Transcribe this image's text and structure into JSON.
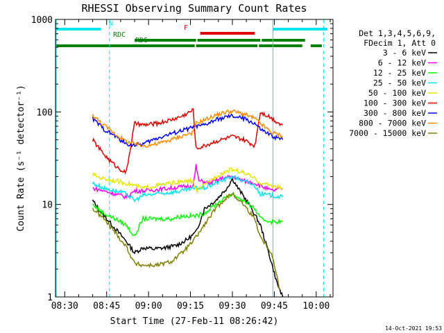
{
  "chart_data": {
    "type": "line",
    "title": "RHESSI Observing Summary Count Rates",
    "xlabel": "Start Time (27-Feb-11 08:26:42)",
    "ylabel": "Count Rate (s⁻¹ detector⁻¹)",
    "yscale": "log",
    "ylim": [
      1,
      1000
    ],
    "xlim": [
      "08:26:42",
      "10:06:00"
    ],
    "x_ticks": [
      "08:30",
      "08:45",
      "09:00",
      "09:15",
      "09:30",
      "09:45",
      "10:00"
    ],
    "y_ticks": [
      "1",
      "10",
      "100",
      "1000"
    ],
    "legend_header": [
      "Det 1,3,4,5,6,9,",
      "FDecim 1, Att 0"
    ],
    "legend_position": "right",
    "timestamp": "14-Oct-2021 19:53",
    "flags": [
      {
        "label": "N",
        "color": "#00e5ee",
        "segments": [
          [
            "08:26:42",
            "08:43:00"
          ],
          [
            "09:44:30",
            "10:04:00"
          ]
        ]
      },
      {
        "label": "F",
        "color": "#e00000",
        "segments": [
          [
            "09:18:30",
            "09:38:00"
          ]
        ]
      },
      {
        "label": "RDC",
        "color": "#008000",
        "segments": [
          [
            "08:55:00",
            "09:17:00"
          ],
          [
            "09:17:30",
            "09:40:00"
          ],
          [
            "09:40:30",
            "09:56:00"
          ]
        ]
      },
      {
        "label": "RD6",
        "color": "#008000",
        "segments": [
          [
            "08:26:42",
            "08:55:00"
          ],
          [
            "08:55:00",
            "09:16:30"
          ],
          [
            "09:17:00",
            "09:39:00"
          ],
          [
            "09:39:30",
            "09:55:00"
          ],
          [
            "09:58:00",
            "10:02:00"
          ]
        ]
      }
    ],
    "vlines": [
      {
        "time": "08:26:42",
        "color": "#00e5ee",
        "style": "solid"
      },
      {
        "time": "09:44:30",
        "color": "#00e5ee",
        "style": "solid"
      },
      {
        "time": "08:46:00",
        "color": "#00e5ee",
        "style": "dashed"
      },
      {
        "time": "10:02:40",
        "color": "#00e5ee",
        "style": "dashed"
      }
    ],
    "series": [
      {
        "name": "3 - 6 keV",
        "color": "#000000",
        "x": [
          "08:40:00",
          "08:42:00",
          "08:45:00",
          "08:48:00",
          "08:52:00",
          "08:55:00",
          "08:58:00",
          "09:02:00",
          "09:06:00",
          "09:10:00",
          "09:14:00",
          "09:17:00",
          "09:20:00",
          "09:24:00",
          "09:28:00",
          "09:30:00",
          "09:32:00",
          "09:36:00",
          "09:40:00",
          "09:43:00",
          "09:46:00",
          "09:48:00"
        ],
        "values": [
          11,
          9,
          7,
          5.5,
          4,
          3,
          3.4,
          3.3,
          3.4,
          3.6,
          4.2,
          5,
          9,
          11,
          15,
          19,
          15,
          10,
          6,
          3,
          1.4,
          1
        ]
      },
      {
        "name": "6 - 12 keV",
        "color": "#ff00ff",
        "x": [
          "08:40:00",
          "08:44:00",
          "08:48:00",
          "08:52:00",
          "08:55:00",
          "08:58:00",
          "09:03:00",
          "09:08:00",
          "09:12:00",
          "09:16:00",
          "09:17:00",
          "09:18:00",
          "09:22:00",
          "09:26:00",
          "09:30:00",
          "09:34:00",
          "09:38:00",
          "09:40:00",
          "09:44:00",
          "09:48:00"
        ],
        "values": [
          15,
          14,
          13,
          12,
          14,
          14,
          14.5,
          15,
          15.5,
          16,
          26,
          18,
          17,
          19,
          20,
          18,
          17,
          16,
          14,
          15
        ]
      },
      {
        "name": "12 - 25 keV",
        "color": "#00ff00",
        "x": [
          "08:40:00",
          "08:44:00",
          "08:48:00",
          "08:52:00",
          "08:55:00",
          "08:58:00",
          "09:03:00",
          "09:08:00",
          "09:12:00",
          "09:17:00",
          "09:20:00",
          "09:24:00",
          "09:28:00",
          "09:30:00",
          "09:34:00",
          "09:38:00",
          "09:40:00",
          "09:44:00",
          "09:48:00"
        ],
        "values": [
          10,
          8,
          7,
          6,
          4.5,
          7,
          7,
          7,
          7.5,
          7.5,
          8,
          10,
          12,
          13,
          11,
          9,
          7,
          6.5,
          6.5
        ]
      },
      {
        "name": "25 - 50 keV",
        "color": "#00e5ee",
        "x": [
          "08:40:00",
          "08:44:00",
          "08:48:00",
          "08:52:00",
          "08:55:00",
          "08:58:00",
          "09:03:00",
          "09:08:00",
          "09:12:00",
          "09:17:00",
          "09:20:00",
          "09:24:00",
          "09:28:00",
          "09:30:00",
          "09:34:00",
          "09:38:00",
          "09:40:00",
          "09:44:00",
          "09:48:00"
        ],
        "values": [
          17,
          15,
          14,
          13,
          11,
          12.5,
          13,
          13.5,
          14,
          15,
          15,
          17,
          19,
          20,
          18,
          16,
          13,
          12.5,
          12
        ]
      },
      {
        "name": "50 - 100 keV",
        "color": "#e6e600",
        "x": [
          "08:40:00",
          "08:44:00",
          "08:48:00",
          "08:52:00",
          "08:55:00",
          "08:58:00",
          "09:03:00",
          "09:08:00",
          "09:12:00",
          "09:16:00",
          "09:17:00",
          "09:20:00",
          "09:24:00",
          "09:28:00",
          "09:30:00",
          "09:34:00",
          "09:38:00",
          "09:40:00",
          "09:44:00",
          "09:48:00"
        ],
        "values": [
          21,
          19,
          18,
          17,
          16,
          15,
          16,
          17,
          17.5,
          18,
          14,
          16,
          20,
          23,
          24,
          22,
          19,
          17,
          16,
          15
        ]
      },
      {
        "name": "100 - 300 keV",
        "color": "#e00000",
        "x": [
          "08:40:00",
          "08:43:00",
          "08:46:00",
          "08:49:00",
          "08:52:00",
          "08:55:00",
          "08:58:00",
          "09:03:00",
          "09:08:00",
          "09:12:00",
          "09:16:00",
          "09:17:00",
          "09:20:00",
          "09:24:00",
          "09:28:00",
          "09:30:00",
          "09:34:00",
          "09:38:00",
          "09:40:00",
          "09:43:00",
          "09:46:00",
          "09:48:00"
        ],
        "values": [
          50,
          38,
          30,
          25,
          22,
          75,
          72,
          75,
          82,
          90,
          105,
          40,
          43,
          48,
          52,
          54,
          50,
          43,
          100,
          90,
          78,
          72
        ]
      },
      {
        "name": "300 - 800 keV",
        "color": "#0000ff",
        "x": [
          "08:40:00",
          "08:44:00",
          "08:48:00",
          "08:52:00",
          "08:55:00",
          "08:58:00",
          "09:03:00",
          "09:08:00",
          "09:12:00",
          "09:16:00",
          "09:20:00",
          "09:24:00",
          "09:28:00",
          "09:30:00",
          "09:34:00",
          "09:38:00",
          "09:40:00",
          "09:44:00",
          "09:48:00"
        ],
        "values": [
          85,
          65,
          55,
          45,
          44,
          45,
          52,
          58,
          63,
          68,
          72,
          82,
          88,
          90,
          85,
          75,
          65,
          55,
          50
        ]
      },
      {
        "name": "800 - 7000 keV",
        "color": "#ff8c00",
        "x": [
          "08:40:00",
          "08:44:00",
          "08:48:00",
          "08:52:00",
          "08:55:00",
          "08:58:00",
          "09:03:00",
          "09:08:00",
          "09:12:00",
          "09:16:00",
          "09:17:00",
          "09:20:00",
          "09:24:00",
          "09:28:00",
          "09:30:00",
          "09:34:00",
          "09:38:00",
          "09:40:00",
          "09:44:00",
          "09:48:00"
        ],
        "values": [
          92,
          72,
          58,
          48,
          45,
          43,
          45,
          50,
          55,
          60,
          75,
          82,
          92,
          100,
          102,
          95,
          85,
          75,
          60,
          55
        ]
      },
      {
        "name": "7000 - 15000 keV",
        "color": "#808000",
        "x": [
          "08:40:00",
          "08:44:00",
          "08:48:00",
          "08:52:00",
          "08:55:00",
          "08:58:00",
          "09:03:00",
          "09:08:00",
          "09:12:00",
          "09:16:00",
          "09:20:00",
          "09:24:00",
          "09:28:00",
          "09:30:00",
          "09:34:00",
          "09:38:00",
          "09:40:00",
          "09:44:00",
          "09:47:00"
        ],
        "values": [
          9,
          7,
          5,
          3.5,
          2.3,
          2.2,
          2.2,
          2.4,
          3,
          4,
          6,
          9,
          12,
          13,
          10,
          7,
          4.5,
          3,
          1.2
        ]
      }
    ]
  }
}
